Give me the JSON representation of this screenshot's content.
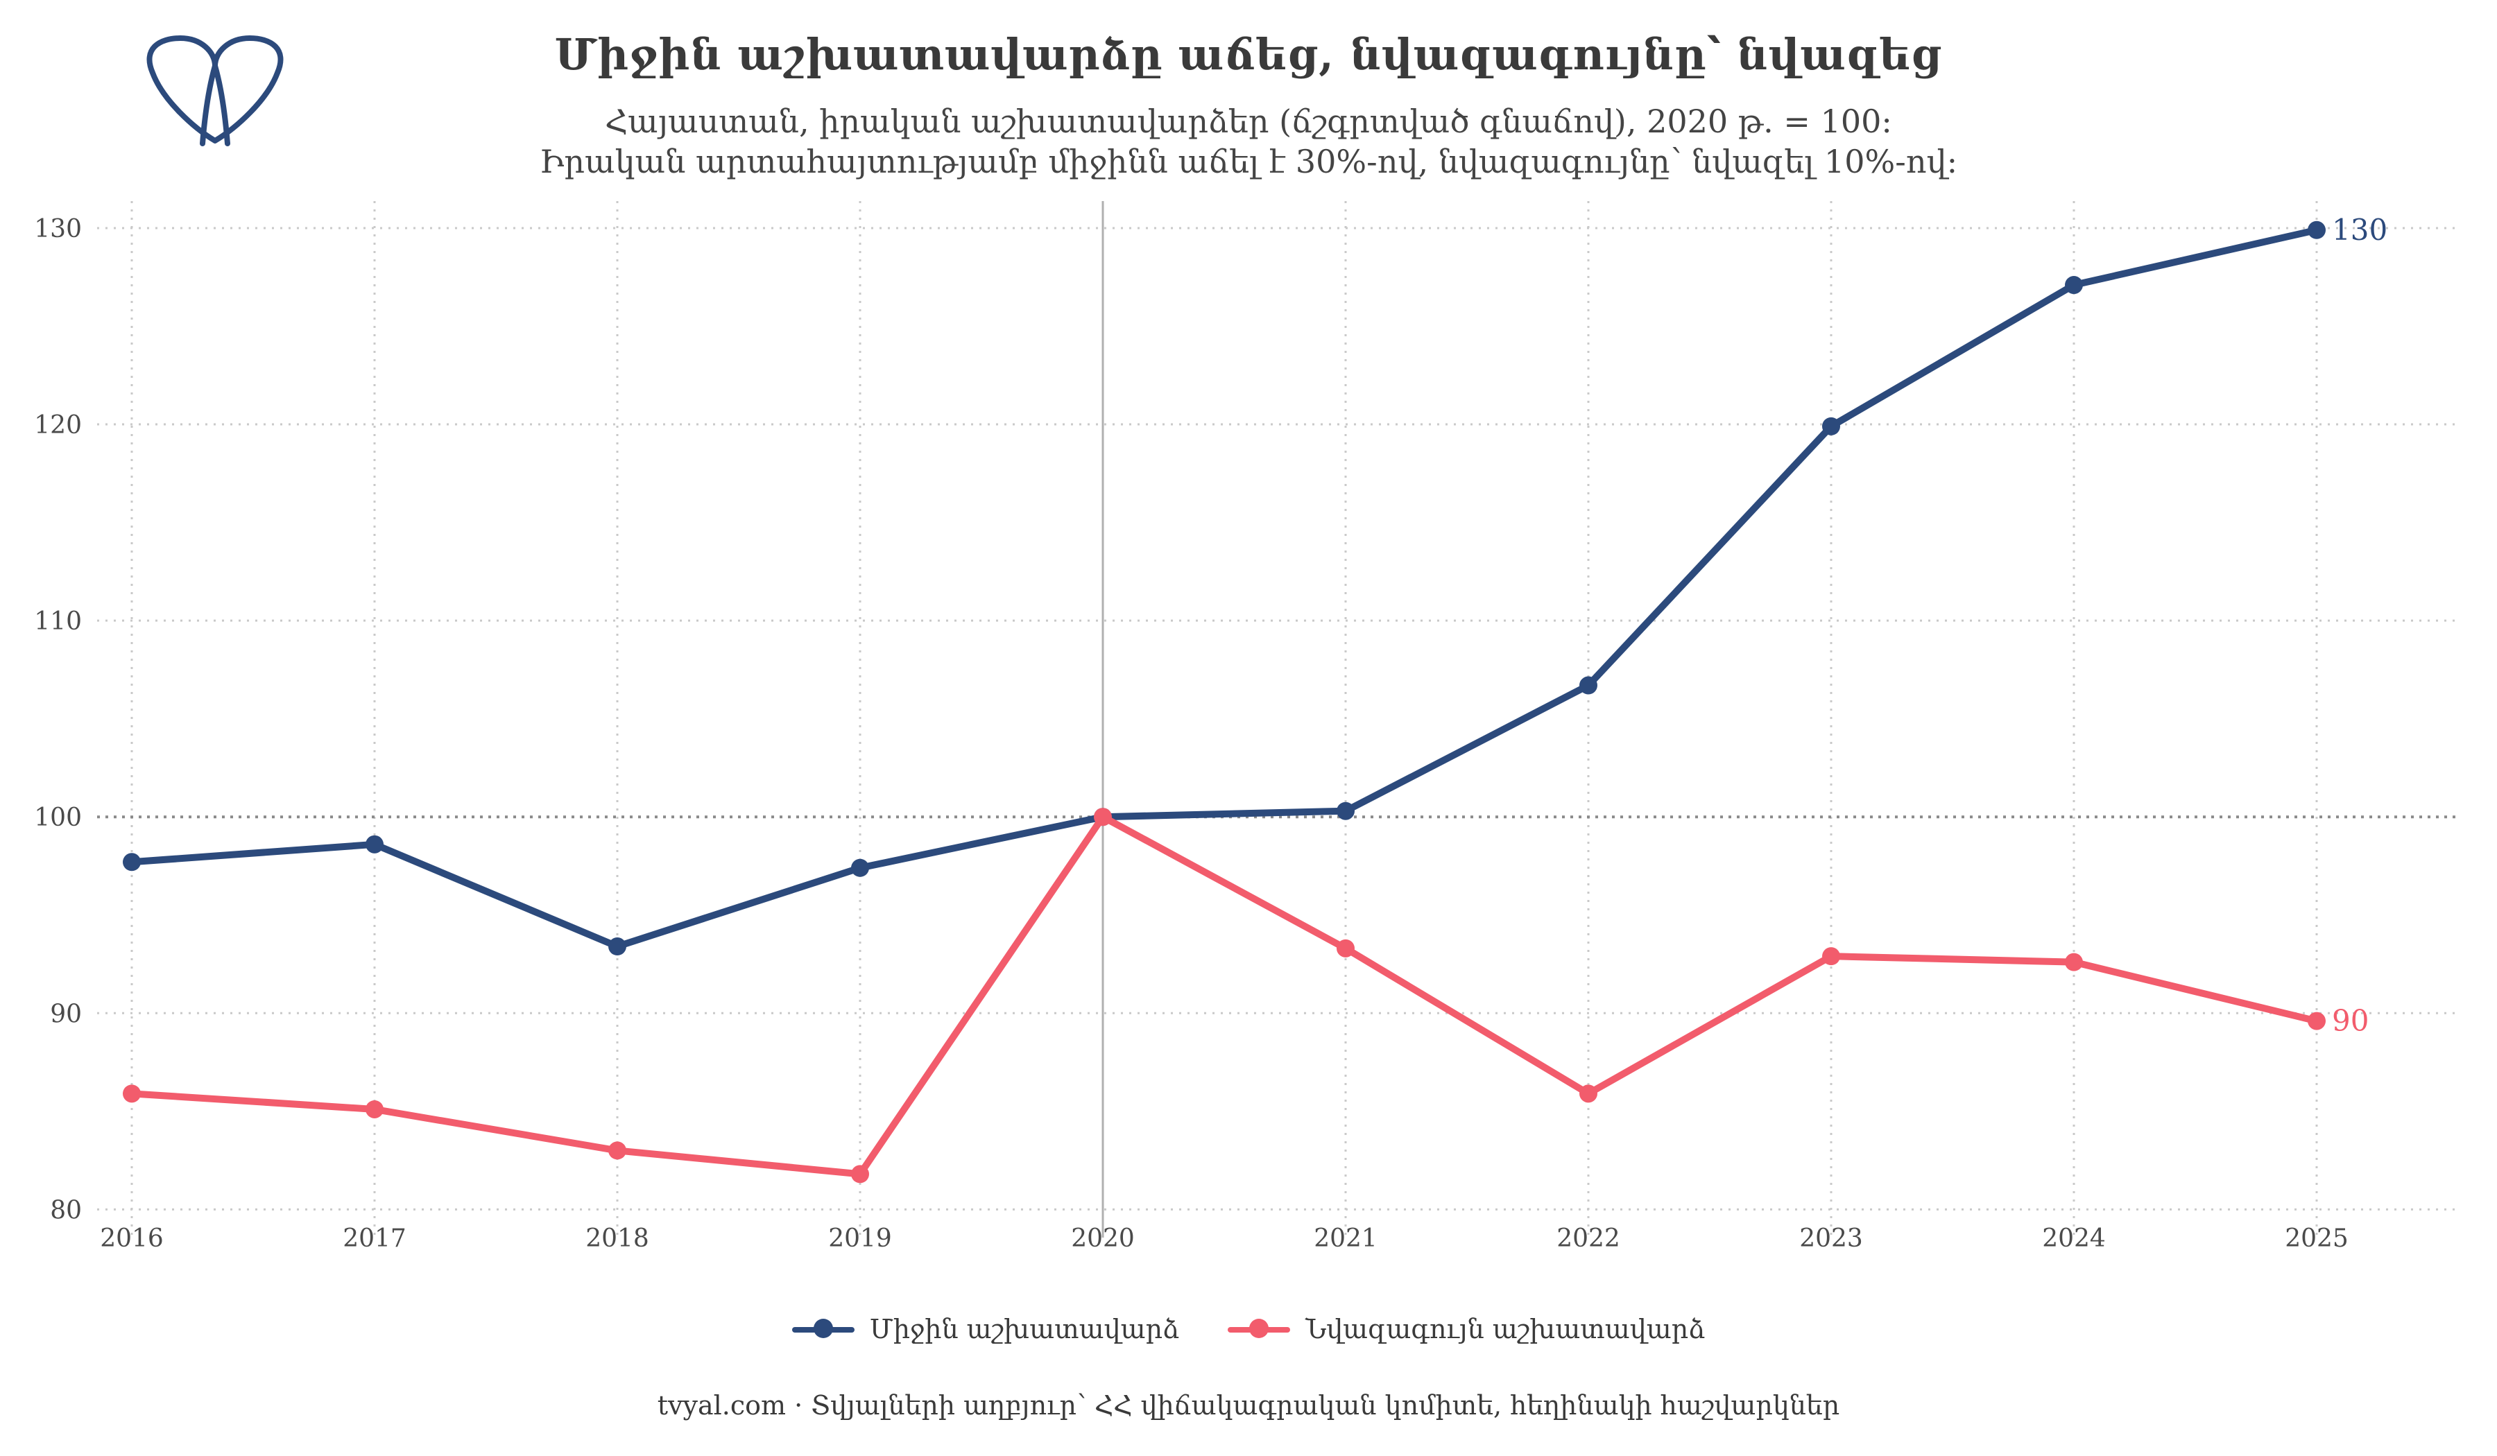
{
  "header": {
    "title": "Միջին աշխատավարձը աճեց, նվազագույնը՝ նվազեց",
    "subtitle_line1": "Հայաստան, իրական աշխատավարձեր (ճշգրտված գնաճով), 2020 թ. = 100:",
    "subtitle_line2": "Իրական արտահայտությամբ միջինն աճել է 30%-ով, նվազագույնը՝ նվազել 10%-ով:"
  },
  "logo": {
    "icon": "tvyal-logo-icon",
    "color": "#2c4a7c"
  },
  "legend": {
    "position": "bottom-center",
    "items": [
      {
        "label": "Միջին աշխատավարձ",
        "color": "#2c4a7c"
      },
      {
        "label": "Նվազագույն աշխատավարձ",
        "color": "#f25c6c"
      }
    ]
  },
  "caption": "tvyal.com  ·  Տվյալների աղբյուր՝ ՀՀ վիճակագրական կոմիտե, հեղինակի հաշվարկներ",
  "chart_data": {
    "type": "line",
    "x": [
      2016,
      2017,
      2018,
      2019,
      2020,
      2021,
      2022,
      2023,
      2024,
      2025
    ],
    "x_tick_labels": [
      "2016",
      "2017",
      "2018",
      "2019",
      "2020",
      "2021",
      "2022",
      "2023",
      "2024",
      "2025"
    ],
    "y_ticks": [
      80,
      90,
      100,
      110,
      120,
      130
    ],
    "y_tick_labels": [
      "80",
      "90",
      "100",
      "110",
      "120",
      "130"
    ],
    "ylim": [
      79.8,
      131.2
    ],
    "xlim": [
      2016,
      2025
    ],
    "grid": true,
    "reference_line_y": 100,
    "reference_line_x": 2020,
    "series": [
      {
        "name": "Միջին աշխատավարձ",
        "color": "#2c4a7c",
        "values": [
          97.7,
          98.6,
          93.4,
          97.4,
          100.0,
          100.3,
          106.7,
          119.9,
          127.1,
          129.9
        ],
        "end_label": "130"
      },
      {
        "name": "Նվազագույն աշխատավարձ",
        "color": "#f25c6c",
        "values": [
          85.9,
          85.1,
          83.0,
          81.8,
          100.0,
          93.3,
          85.9,
          92.9,
          92.6,
          89.6
        ],
        "end_label": "90"
      }
    ]
  }
}
